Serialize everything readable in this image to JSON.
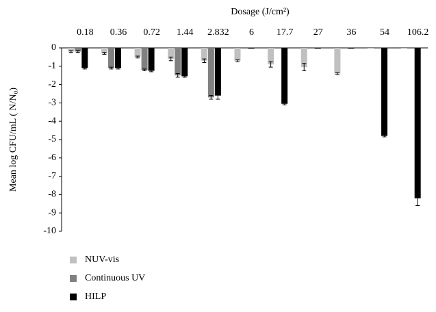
{
  "chart_data": {
    "type": "bar",
    "title": "Dosage (J/cm²)",
    "y_label": "Mean log CFU/mL ( N/N₀)",
    "categories": [
      "0.18",
      "0.36",
      "0.72",
      "1.44",
      "2.832",
      "6",
      "17.7",
      "27",
      "36",
      "54",
      "106.2"
    ],
    "series": [
      {
        "name": "NUV-vis",
        "color": "#c0c0c0",
        "values": [
          -0.2,
          -0.3,
          -0.5,
          -0.6,
          -0.7,
          -0.7,
          -0.9,
          -1.05,
          -1.4,
          0,
          0
        ],
        "errors": [
          0.05,
          0.05,
          0.05,
          0.1,
          0.1,
          0.05,
          0.15,
          0.2,
          0.05,
          0,
          0
        ]
      },
      {
        "name": "Continuous UV",
        "color": "#808080",
        "values": [
          -0.2,
          -1.1,
          -1.2,
          -1.5,
          -2.7,
          0,
          0,
          0,
          0,
          0,
          0
        ],
        "errors": [
          0.05,
          0.05,
          0.05,
          0.1,
          0.1,
          0,
          0,
          0,
          0,
          0,
          0
        ]
      },
      {
        "name": "HILP",
        "color": "#000000",
        "values": [
          -1.1,
          -1.1,
          -1.25,
          -1.55,
          -2.6,
          0,
          -3.05,
          0,
          0,
          -4.8,
          -8.2
        ],
        "errors": [
          0.05,
          0.05,
          0.05,
          0.05,
          0.2,
          0,
          0.05,
          0,
          0,
          0.05,
          0.4
        ]
      }
    ],
    "ylim": [
      0,
      -10
    ],
    "yticks": [
      0,
      -1,
      -2,
      -3,
      -4,
      -5,
      -6,
      -7,
      -8,
      -9,
      -10
    ],
    "grid": false,
    "legend": "bottom-left"
  }
}
